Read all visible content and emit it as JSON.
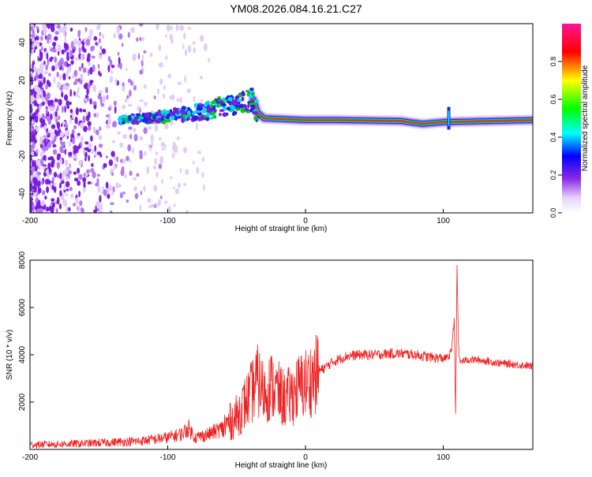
{
  "title": "YM08.2026.084.16.21.C27",
  "chart_data": [
    {
      "type": "heatmap",
      "name": "spectrogram",
      "xlabel": "Height of straight line (km)",
      "ylabel": "Frequency (Hz)",
      "xlim": [
        -200,
        165
      ],
      "ylim": [
        -50,
        50
      ],
      "x_ticks": [
        -200,
        -100,
        0,
        100
      ],
      "x_tick_labels": [
        "-200",
        "-100",
        "0",
        "100"
      ],
      "y_ticks": [
        40,
        20,
        0,
        -20,
        -40
      ],
      "y_tick_labels": [
        "40",
        "20",
        "0",
        "-20",
        "-40"
      ],
      "ridge": [
        {
          "x": -135,
          "y": -1
        },
        {
          "x": -100,
          "y": 1
        },
        {
          "x": -70,
          "y": 4
        },
        {
          "x": -50,
          "y": 8
        },
        {
          "x": -38,
          "y": 10
        },
        {
          "x": -35,
          "y": 3
        },
        {
          "x": -30,
          "y": 0
        },
        {
          "x": 0,
          "y": -1
        },
        {
          "x": 25,
          "y": -1
        },
        {
          "x": 70,
          "y": -1.5
        },
        {
          "x": 85,
          "y": -3
        },
        {
          "x": 100,
          "y": -2
        },
        {
          "x": 165,
          "y": -1
        }
      ],
      "colorbar": {
        "label": "Normalized spectral amplitude",
        "range": [
          0,
          1
        ],
        "ticks": [
          0.0,
          0.2,
          0.4,
          0.6,
          0.8
        ],
        "tick_labels": [
          "0.0",
          "0.2",
          "0.4",
          "0.6",
          "0.8"
        ],
        "colors": [
          "#ffffff",
          "#e6d2ff",
          "#8a2be2",
          "#0000ff",
          "#00ffff",
          "#00ff00",
          "#ffff00",
          "#ff0000",
          "#ff1493"
        ]
      }
    },
    {
      "type": "line",
      "name": "snr",
      "xlabel": "Height of straight line (km)",
      "ylabel": "SNR (10 * v/v)",
      "xlim": [
        -200,
        165
      ],
      "ylim": [
        0,
        8000
      ],
      "x_ticks": [
        -200,
        -100,
        0,
        100
      ],
      "x_tick_labels": [
        "-200",
        "-100",
        "0",
        "100"
      ],
      "y_ticks": [
        2000,
        4000,
        6000,
        8000
      ],
      "y_tick_labels": [
        "2000",
        "4000",
        "6000",
        "8000"
      ],
      "color": "#ee2222",
      "x": [
        -200,
        -180,
        -160,
        -140,
        -120,
        -100,
        -90,
        -85,
        -80,
        -70,
        -60,
        -50,
        -40,
        -35,
        -30,
        -25,
        -20,
        -15,
        -10,
        -5,
        0,
        5,
        10,
        20,
        30,
        40,
        50,
        60,
        70,
        80,
        90,
        100,
        104,
        106,
        108,
        109,
        110,
        111,
        112,
        115,
        120,
        130,
        140,
        150,
        160,
        165
      ],
      "y": [
        200,
        220,
        250,
        300,
        350,
        500,
        650,
        900,
        500,
        650,
        900,
        1400,
        2300,
        2900,
        2400,
        2700,
        2400,
        2100,
        2300,
        2600,
        2800,
        3000,
        3300,
        3700,
        3950,
        4000,
        4000,
        4050,
        4050,
        4000,
        3900,
        3850,
        3900,
        4200,
        5600,
        1200,
        7900,
        4500,
        3700,
        3750,
        3800,
        3750,
        3650,
        3600,
        3550,
        3500
      ]
    }
  ]
}
